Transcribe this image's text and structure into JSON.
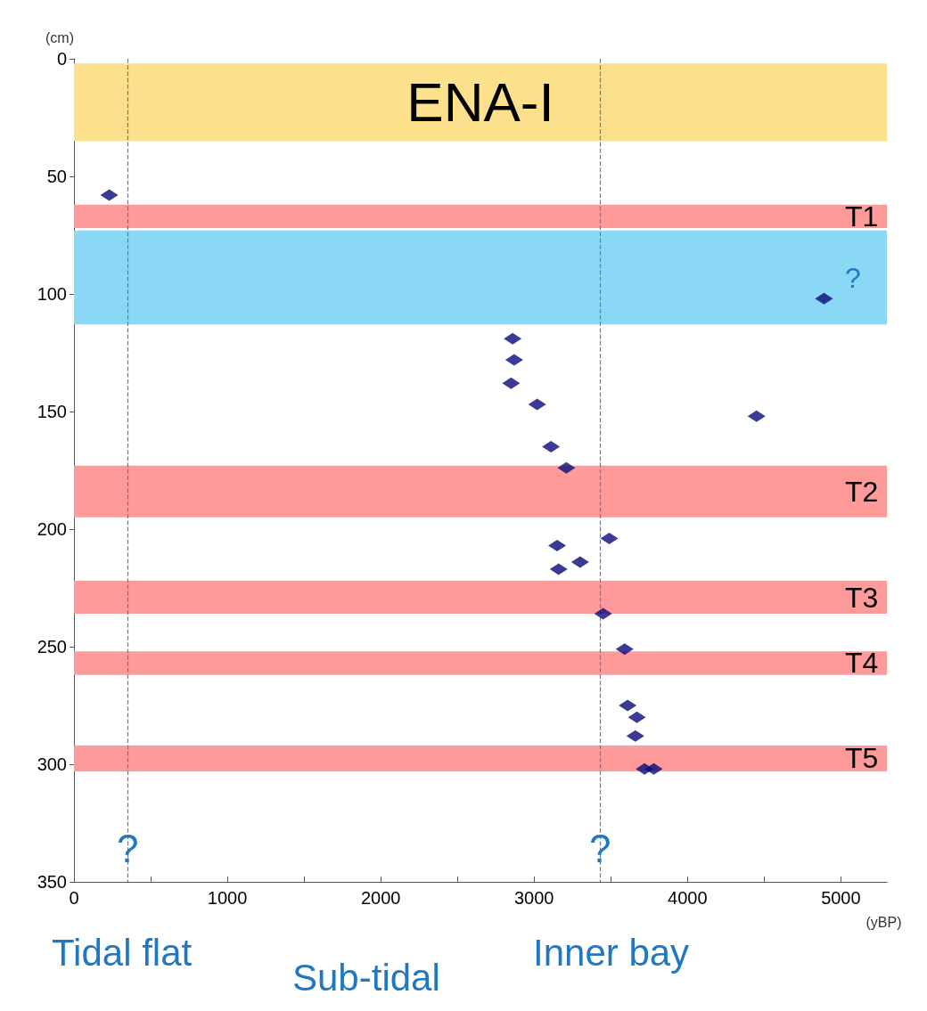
{
  "chart_data": {
    "type": "scatter",
    "xlabel": "(yBP)",
    "ylabel": "(cm)",
    "x": [
      230,
      4890,
      2860,
      2870,
      2850,
      3020,
      4450,
      3110,
      3210,
      3150,
      3490,
      3300,
      3160,
      3450,
      3590,
      3610,
      3670,
      3660,
      3720,
      3780
    ],
    "values": [
      58,
      102,
      119,
      128,
      138,
      147,
      152,
      165,
      174,
      207,
      204,
      214,
      217,
      236,
      251,
      275,
      280,
      288,
      302,
      302
    ],
    "color": "#0a0a7a",
    "marker": "diamond",
    "grid": false,
    "xlim": [
      0,
      5300
    ],
    "xticks": [
      0,
      {
        "value": 500,
        "label": null
      },
      1000,
      {
        "value": 1500,
        "label": null
      },
      2000,
      {
        "value": 2500,
        "label": null
      },
      3000,
      {
        "value": 3500,
        "label": null
      },
      4000,
      {
        "value": 4500,
        "label": null
      },
      5000
    ],
    "ylim": [
      350,
      0
    ],
    "yticks": [
      0,
      50,
      100,
      150,
      200,
      250,
      300,
      350
    ],
    "bands": [
      {
        "axis": "y",
        "from": 2,
        "to": 35,
        "label": "ENA-I",
        "color": "#fde08c"
      },
      {
        "axis": "y",
        "from": 62,
        "to": 72,
        "label": "T1",
        "color": "#ff9a9a"
      },
      {
        "axis": "y",
        "from": 73,
        "to": 113,
        "label": "?",
        "color": "#8ad8f5"
      },
      {
        "axis": "y",
        "from": 173,
        "to": 195,
        "label": "T2",
        "color": "#ff9a9a"
      },
      {
        "axis": "y",
        "from": 222,
        "to": 236,
        "label": "T3",
        "color": "#ff9a9a"
      },
      {
        "axis": "y",
        "from": 252,
        "to": 262,
        "label": "T4",
        "color": "#ff9a9a"
      },
      {
        "axis": "y",
        "from": 292,
        "to": 303,
        "label": "T5",
        "color": "#ff9a9a"
      }
    ],
    "ref_lines": [
      {
        "axis": "x",
        "value": 350,
        "label": "?",
        "color": "#4a7fc1",
        "line_style": "dashed"
      },
      {
        "axis": "x",
        "value": 3430,
        "label": "?",
        "color": "#4a7fc1",
        "line_style": "dashed"
      }
    ],
    "annotations": [
      "Tidal flat",
      "Sub-tidal",
      "Inner bay"
    ]
  }
}
